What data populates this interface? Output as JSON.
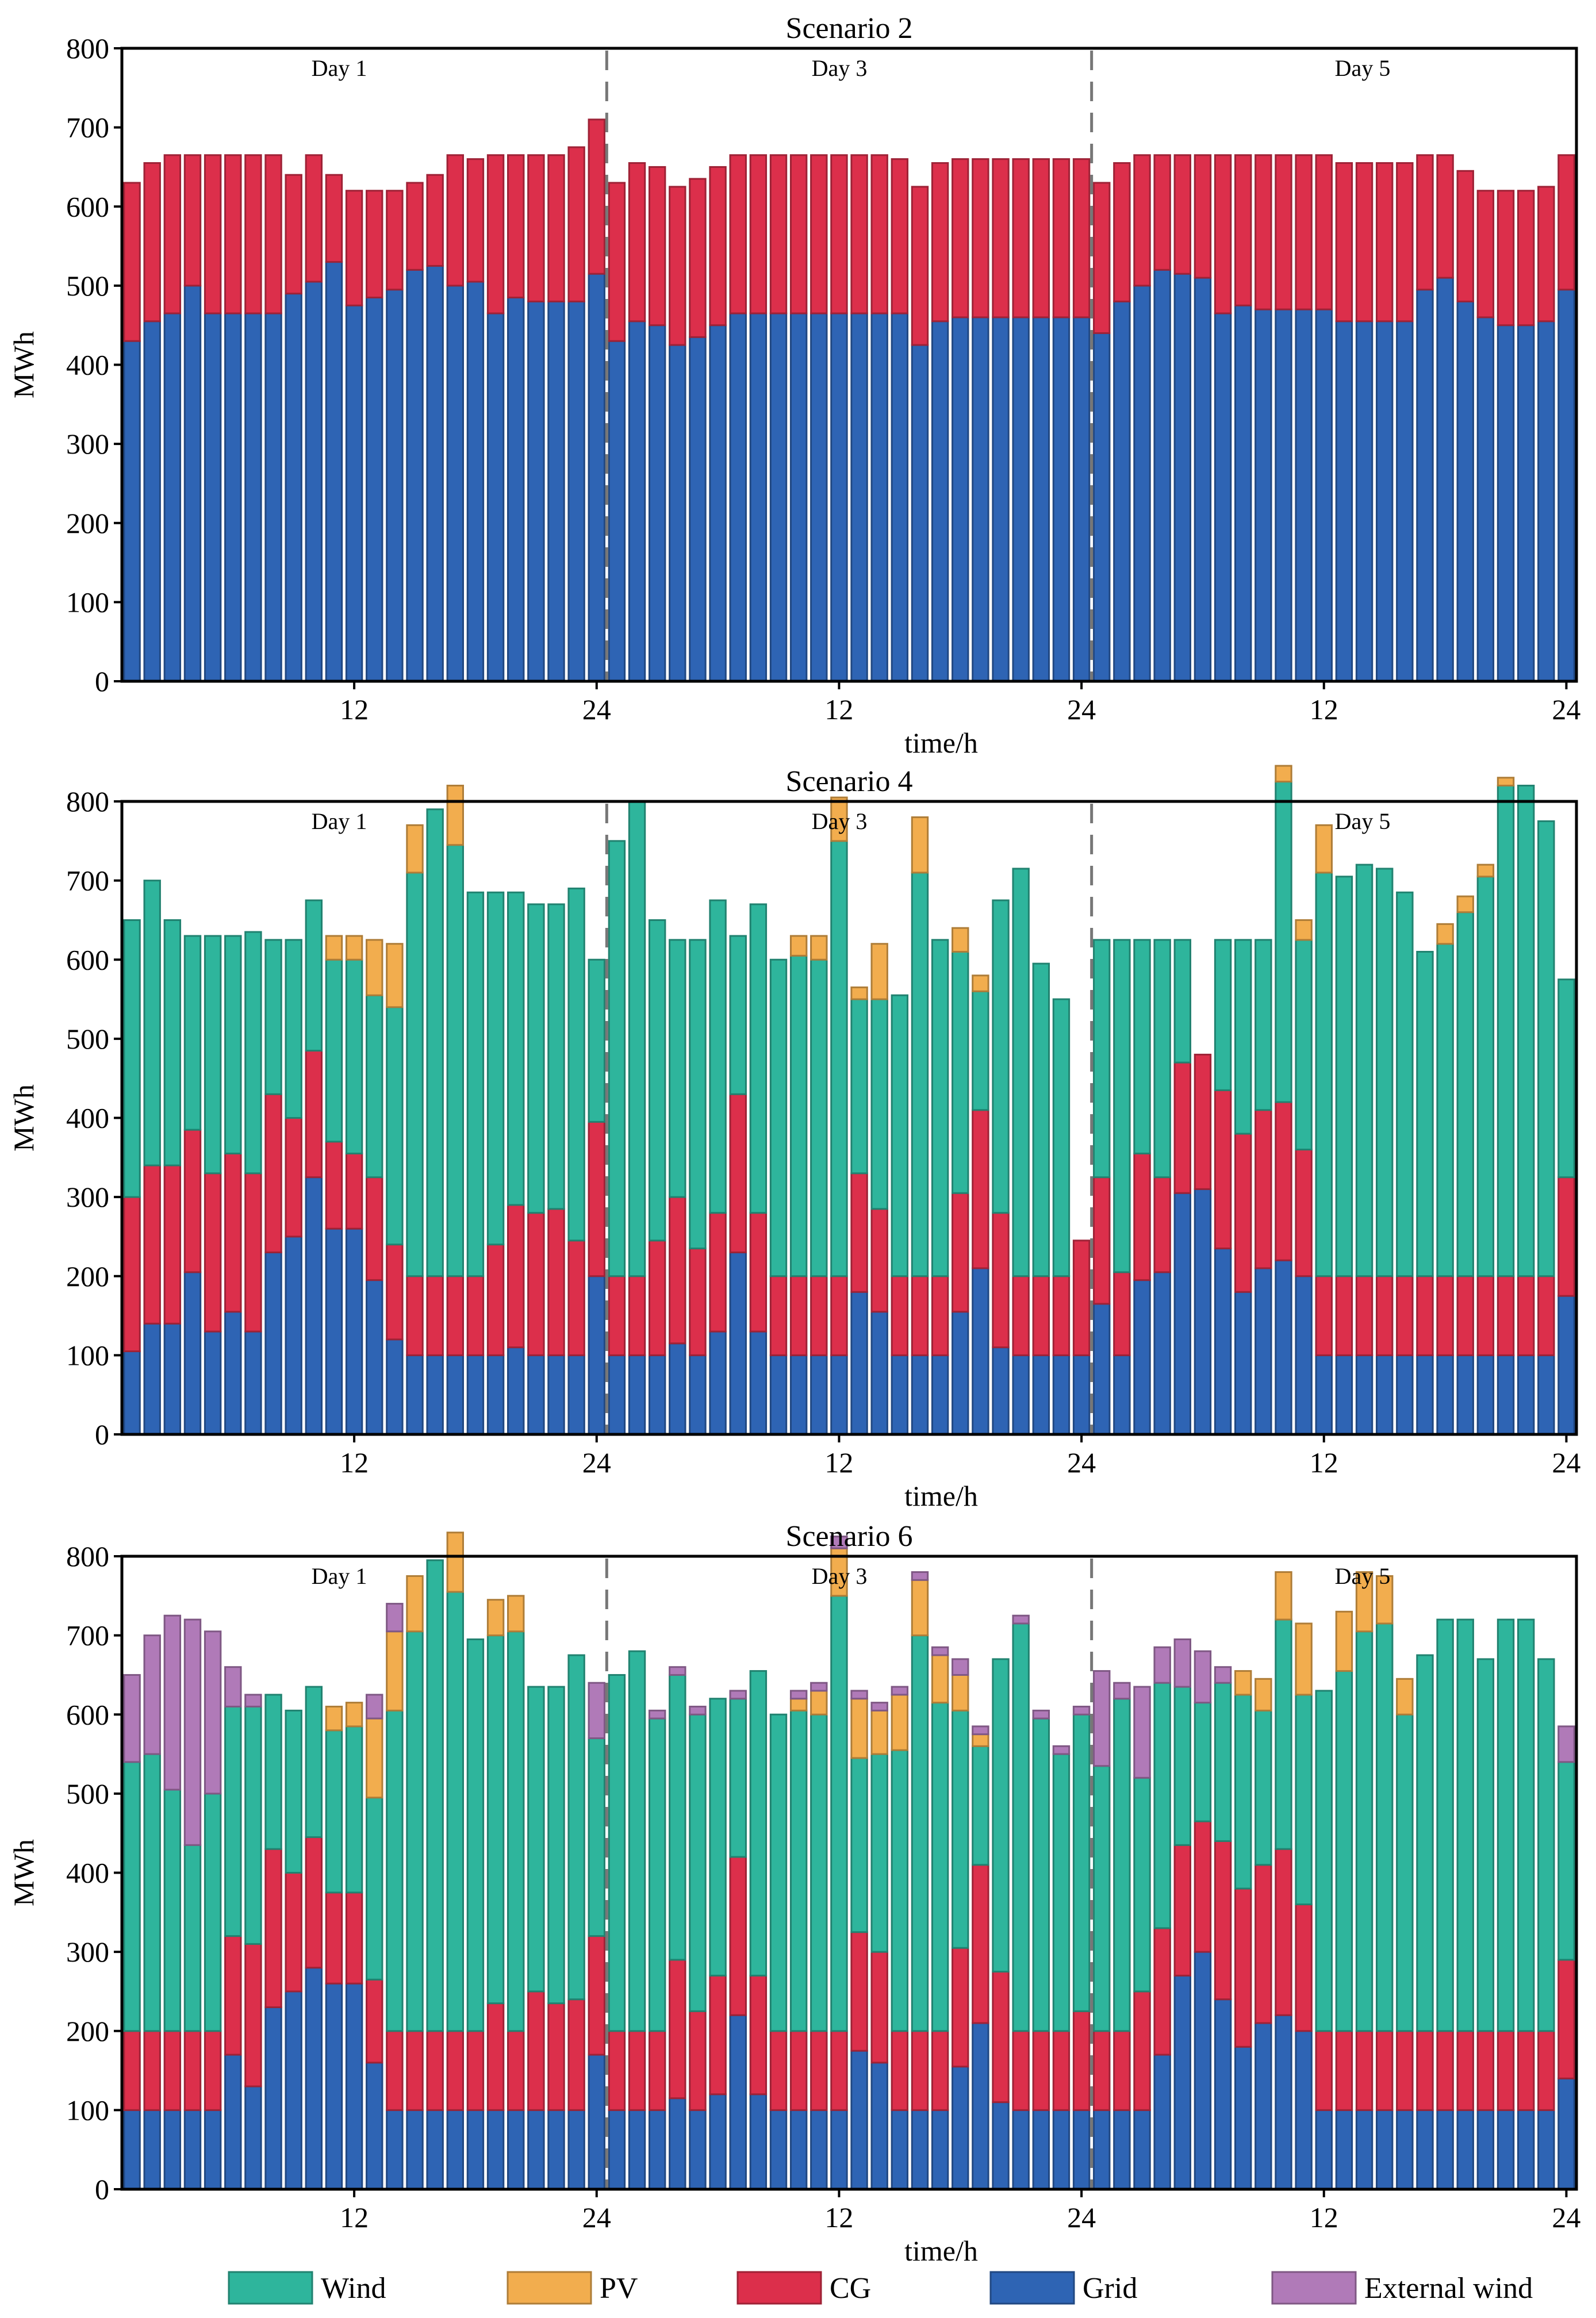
{
  "colors": {
    "Wind": "#2eb59c",
    "PV": "#f2ad4e",
    "CG": "#dc2f4b",
    "Grid": "#2e64b4",
    "External wind": "#b07ab8"
  },
  "legend": {
    "items": [
      "Wind",
      "PV",
      "CG",
      "Grid",
      "External wind"
    ]
  },
  "chart_data": [
    {
      "type": "bar",
      "stacked": true,
      "title": "Scenario 2",
      "xlabel": "time/h",
      "ylabel": "MWh",
      "ylim": [
        0,
        800
      ],
      "yticks": [
        0,
        100,
        200,
        300,
        400,
        500,
        600,
        700,
        800
      ],
      "xtick_labels": [
        "12",
        "24",
        "12",
        "24",
        "12",
        "24"
      ],
      "day_labels": [
        "Day 1",
        "Day 3",
        "Day 5"
      ],
      "series_order": [
        "Grid",
        "CG",
        "Wind",
        "PV",
        "External wind"
      ],
      "series": {
        "Grid": [
          430,
          455,
          465,
          500,
          465,
          465,
          465,
          465,
          490,
          505,
          530,
          475,
          485,
          495,
          520,
          525,
          500,
          505,
          465,
          485,
          480,
          480,
          480,
          515,
          430,
          455,
          450,
          425,
          435,
          450,
          465,
          465,
          465,
          465,
          465,
          465,
          465,
          465,
          465,
          425,
          455,
          460,
          460,
          460,
          460,
          460,
          460,
          460,
          440,
          480,
          500,
          520,
          515,
          510,
          465,
          475,
          470,
          470,
          470,
          470,
          455,
          455,
          455,
          455,
          495,
          510,
          480,
          460,
          450,
          450,
          455,
          495
        ],
        "CG": [
          200,
          200,
          200,
          165,
          200,
          200,
          200,
          200,
          150,
          160,
          110,
          145,
          135,
          125,
          110,
          115,
          165,
          155,
          200,
          180,
          185,
          185,
          195,
          195,
          200,
          200,
          200,
          200,
          200,
          200,
          200,
          200,
          200,
          200,
          200,
          200,
          200,
          200,
          195,
          200,
          200,
          200,
          200,
          200,
          200,
          200,
          200,
          200,
          190,
          175,
          165,
          145,
          150,
          155,
          200,
          190,
          195,
          195,
          195,
          195,
          200,
          200,
          200,
          200,
          170,
          155,
          165,
          160,
          170,
          170,
          170,
          170
        ],
        "Wind": [
          0,
          0,
          0,
          0,
          0,
          0,
          0,
          0,
          0,
          0,
          0,
          0,
          0,
          0,
          0,
          0,
          0,
          0,
          0,
          0,
          0,
          0,
          0,
          0,
          0,
          0,
          0,
          0,
          0,
          0,
          0,
          0,
          0,
          0,
          0,
          0,
          0,
          0,
          0,
          0,
          0,
          0,
          0,
          0,
          0,
          0,
          0,
          0,
          0,
          0,
          0,
          0,
          0,
          0,
          0,
          0,
          0,
          0,
          0,
          0,
          0,
          0,
          0,
          0,
          0,
          0,
          0,
          0,
          0,
          0,
          0,
          0
        ],
        "PV": [
          0,
          0,
          0,
          0,
          0,
          0,
          0,
          0,
          0,
          0,
          0,
          0,
          0,
          0,
          0,
          0,
          0,
          0,
          0,
          0,
          0,
          0,
          0,
          0,
          0,
          0,
          0,
          0,
          0,
          0,
          0,
          0,
          0,
          0,
          0,
          0,
          0,
          0,
          0,
          0,
          0,
          0,
          0,
          0,
          0,
          0,
          0,
          0,
          0,
          0,
          0,
          0,
          0,
          0,
          0,
          0,
          0,
          0,
          0,
          0,
          0,
          0,
          0,
          0,
          0,
          0,
          0,
          0,
          0,
          0,
          0,
          0
        ],
        "External wind": [
          0,
          0,
          0,
          0,
          0,
          0,
          0,
          0,
          0,
          0,
          0,
          0,
          0,
          0,
          0,
          0,
          0,
          0,
          0,
          0,
          0,
          0,
          0,
          0,
          0,
          0,
          0,
          0,
          0,
          0,
          0,
          0,
          0,
          0,
          0,
          0,
          0,
          0,
          0,
          0,
          0,
          0,
          0,
          0,
          0,
          0,
          0,
          0,
          0,
          0,
          0,
          0,
          0,
          0,
          0,
          0,
          0,
          0,
          0,
          0,
          0,
          0,
          0,
          0,
          0,
          0,
          0,
          0,
          0,
          0,
          0,
          0
        ]
      }
    },
    {
      "type": "bar",
      "stacked": true,
      "title": "Scenario 4",
      "xlabel": "time/h",
      "ylabel": "MWh",
      "ylim": [
        0,
        800
      ],
      "yticks": [
        0,
        100,
        200,
        300,
        400,
        500,
        600,
        700,
        800
      ],
      "xtick_labels": [
        "12",
        "24",
        "12",
        "24",
        "12",
        "24"
      ],
      "day_labels": [
        "Day 1",
        "Day 3",
        "Day 5"
      ],
      "series_order": [
        "Grid",
        "CG",
        "Wind",
        "PV",
        "External wind"
      ],
      "series": {
        "Grid": [
          105,
          140,
          140,
          205,
          130,
          155,
          130,
          230,
          250,
          325,
          260,
          260,
          195,
          120,
          100,
          100,
          100,
          100,
          100,
          110,
          100,
          100,
          100,
          200,
          100,
          100,
          100,
          115,
          100,
          130,
          230,
          130,
          100,
          100,
          100,
          100,
          180,
          155,
          100,
          100,
          100,
          155,
          210,
          110,
          100,
          100,
          100,
          100,
          165,
          100,
          195,
          205,
          305,
          310,
          235,
          180,
          210,
          220,
          200,
          100,
          100,
          100,
          100,
          100,
          100,
          100,
          100,
          100,
          100,
          100,
          100,
          175
        ],
        "CG": [
          195,
          200,
          200,
          180,
          200,
          200,
          200,
          200,
          150,
          160,
          110,
          95,
          130,
          120,
          100,
          100,
          100,
          100,
          140,
          180,
          180,
          185,
          145,
          195,
          100,
          100,
          145,
          185,
          135,
          150,
          200,
          150,
          100,
          100,
          100,
          100,
          150,
          130,
          100,
          100,
          100,
          150,
          200,
          170,
          100,
          100,
          100,
          145,
          160,
          105,
          160,
          120,
          165,
          170,
          200,
          200,
          200,
          200,
          160,
          100,
          100,
          100,
          100,
          100,
          100,
          100,
          100,
          100,
          100,
          100,
          100,
          150
        ],
        "Wind": [
          350,
          360,
          310,
          245,
          300,
          275,
          305,
          195,
          225,
          190,
          230,
          245,
          230,
          300,
          510,
          590,
          545,
          485,
          445,
          395,
          390,
          385,
          445,
          205,
          550,
          600,
          405,
          325,
          390,
          395,
          200,
          390,
          400,
          405,
          400,
          550,
          220,
          265,
          355,
          510,
          425,
          305,
          150,
          395,
          515,
          395,
          350,
          0,
          300,
          420,
          270,
          300,
          155,
          0,
          190,
          245,
          215,
          405,
          265,
          510,
          505,
          520,
          515,
          485,
          410,
          420,
          460,
          505,
          620,
          620,
          575,
          250
        ],
        "PV": [
          0,
          0,
          0,
          0,
          0,
          0,
          0,
          0,
          0,
          0,
          30,
          30,
          70,
          80,
          60,
          0,
          75,
          0,
          0,
          0,
          0,
          0,
          0,
          0,
          0,
          0,
          0,
          0,
          0,
          0,
          0,
          0,
          0,
          25,
          30,
          55,
          15,
          70,
          0,
          70,
          0,
          30,
          20,
          0,
          0,
          0,
          0,
          0,
          0,
          0,
          0,
          0,
          0,
          0,
          0,
          0,
          0,
          20,
          25,
          60,
          0,
          0,
          0,
          0,
          0,
          25,
          20,
          15,
          10,
          0,
          0,
          0
        ],
        "External wind": [
          0,
          0,
          0,
          0,
          0,
          0,
          0,
          0,
          0,
          0,
          0,
          0,
          0,
          0,
          0,
          0,
          0,
          0,
          0,
          0,
          0,
          0,
          0,
          0,
          0,
          0,
          0,
          0,
          0,
          0,
          0,
          0,
          0,
          0,
          0,
          0,
          0,
          0,
          0,
          0,
          0,
          0,
          0,
          0,
          0,
          0,
          0,
          0,
          0,
          0,
          0,
          0,
          0,
          0,
          0,
          0,
          0,
          0,
          0,
          0,
          0,
          0,
          0,
          0,
          0,
          0,
          0,
          0,
          0,
          0,
          0,
          0
        ]
      }
    },
    {
      "type": "bar",
      "stacked": true,
      "title": "Scenario 6",
      "xlabel": "time/h",
      "ylabel": "MWh",
      "ylim": [
        0,
        800
      ],
      "yticks": [
        0,
        100,
        200,
        300,
        400,
        500,
        600,
        700,
        800
      ],
      "xtick_labels": [
        "12",
        "24",
        "12",
        "24",
        "12",
        "24"
      ],
      "day_labels": [
        "Day 1",
        "Day 3",
        "Day 5"
      ],
      "series_order": [
        "Grid",
        "CG",
        "Wind",
        "PV",
        "External wind"
      ],
      "series": {
        "Grid": [
          100,
          100,
          100,
          100,
          100,
          170,
          130,
          230,
          250,
          280,
          260,
          260,
          160,
          100,
          100,
          100,
          100,
          100,
          100,
          100,
          100,
          100,
          100,
          170,
          100,
          100,
          100,
          115,
          100,
          120,
          220,
          120,
          100,
          100,
          100,
          100,
          175,
          160,
          100,
          100,
          100,
          155,
          210,
          110,
          100,
          100,
          100,
          100,
          100,
          100,
          100,
          170,
          270,
          300,
          240,
          180,
          210,
          220,
          200,
          100,
          100,
          100,
          100,
          100,
          100,
          100,
          100,
          100,
          100,
          100,
          100,
          140
        ],
        "CG": [
          100,
          100,
          100,
          100,
          100,
          150,
          180,
          200,
          150,
          165,
          115,
          115,
          105,
          100,
          100,
          100,
          100,
          100,
          135,
          100,
          150,
          135,
          140,
          150,
          100,
          100,
          100,
          175,
          125,
          150,
          200,
          150,
          100,
          100,
          100,
          100,
          150,
          140,
          100,
          100,
          100,
          150,
          200,
          165,
          100,
          100,
          100,
          125,
          100,
          100,
          150,
          160,
          165,
          165,
          200,
          200,
          200,
          210,
          160,
          100,
          100,
          100,
          100,
          100,
          100,
          100,
          100,
          100,
          100,
          100,
          100,
          150
        ],
        "Wind": [
          340,
          350,
          305,
          235,
          300,
          290,
          300,
          195,
          205,
          190,
          205,
          210,
          230,
          405,
          505,
          595,
          555,
          495,
          465,
          505,
          385,
          400,
          435,
          250,
          450,
          480,
          395,
          360,
          375,
          350,
          200,
          385,
          400,
          405,
          400,
          550,
          220,
          250,
          355,
          500,
          415,
          300,
          150,
          395,
          515,
          395,
          350,
          375,
          335,
          420,
          270,
          310,
          200,
          150,
          200,
          245,
          195,
          290,
          265,
          430,
          455,
          505,
          515,
          400,
          475,
          520,
          520,
          470,
          520,
          520,
          470,
          250
        ],
        "PV": [
          0,
          0,
          0,
          0,
          0,
          0,
          0,
          0,
          0,
          0,
          30,
          30,
          100,
          100,
          70,
          0,
          75,
          0,
          45,
          45,
          0,
          0,
          0,
          0,
          0,
          0,
          0,
          0,
          0,
          0,
          0,
          0,
          0,
          15,
          30,
          60,
          75,
          55,
          70,
          70,
          60,
          45,
          15,
          0,
          0,
          0,
          0,
          0,
          0,
          0,
          0,
          0,
          0,
          0,
          0,
          30,
          40,
          60,
          90,
          0,
          75,
          75,
          60,
          45,
          0,
          0,
          0,
          0,
          0,
          0,
          0,
          0
        ],
        "External wind": [
          110,
          150,
          220,
          285,
          205,
          50,
          15,
          0,
          0,
          0,
          0,
          0,
          30,
          35,
          0,
          0,
          0,
          0,
          0,
          0,
          0,
          0,
          0,
          70,
          0,
          0,
          10,
          10,
          10,
          0,
          10,
          0,
          0,
          10,
          10,
          15,
          10,
          10,
          10,
          10,
          10,
          20,
          10,
          0,
          10,
          10,
          10,
          10,
          120,
          20,
          115,
          45,
          60,
          65,
          20,
          0,
          0,
          0,
          0,
          0,
          0,
          0,
          0,
          0,
          0,
          0,
          0,
          0,
          0,
          0,
          0,
          45
        ]
      }
    }
  ]
}
